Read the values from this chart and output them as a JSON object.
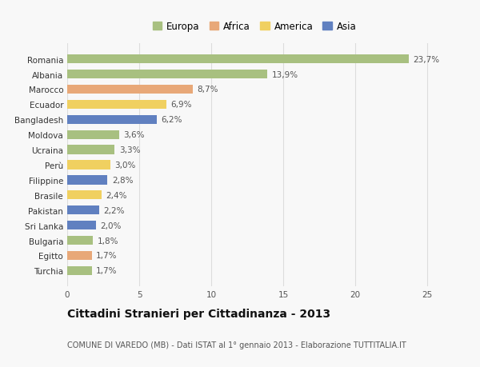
{
  "countries": [
    "Romania",
    "Albania",
    "Marocco",
    "Ecuador",
    "Bangladesh",
    "Moldova",
    "Ucraina",
    "Perù",
    "Filippine",
    "Brasile",
    "Pakistan",
    "Sri Lanka",
    "Bulgaria",
    "Egitto",
    "Turchia"
  ],
  "values": [
    23.7,
    13.9,
    8.7,
    6.9,
    6.2,
    3.6,
    3.3,
    3.0,
    2.8,
    2.4,
    2.2,
    2.0,
    1.8,
    1.7,
    1.7
  ],
  "labels": [
    "23,7%",
    "13,9%",
    "8,7%",
    "6,9%",
    "6,2%",
    "3,6%",
    "3,3%",
    "3,0%",
    "2,8%",
    "2,4%",
    "2,2%",
    "2,0%",
    "1,8%",
    "1,7%",
    "1,7%"
  ],
  "continents": [
    "Europa",
    "Europa",
    "Africa",
    "America",
    "Asia",
    "Europa",
    "Europa",
    "America",
    "Asia",
    "America",
    "Asia",
    "Asia",
    "Europa",
    "Africa",
    "Europa"
  ],
  "continent_colors": {
    "Europa": "#a8c080",
    "Africa": "#e8a878",
    "America": "#f0d060",
    "Asia": "#6080c0"
  },
  "legend_order": [
    "Europa",
    "Africa",
    "America",
    "Asia"
  ],
  "legend_colors": [
    "#a8c080",
    "#e8a878",
    "#f0d060",
    "#6080c0"
  ],
  "title": "Cittadini Stranieri per Cittadinanza - 2013",
  "subtitle": "COMUNE DI VAREDO (MB) - Dati ISTAT al 1° gennaio 2013 - Elaborazione TUTTITALIA.IT",
  "xlim": [
    0,
    26
  ],
  "xticks": [
    0,
    5,
    10,
    15,
    20,
    25
  ],
  "bg_color": "#f8f8f8",
  "grid_color": "#dddddd",
  "bar_height": 0.6,
  "label_fontsize": 7.5,
  "tick_fontsize": 7.5,
  "title_fontsize": 10,
  "subtitle_fontsize": 7
}
